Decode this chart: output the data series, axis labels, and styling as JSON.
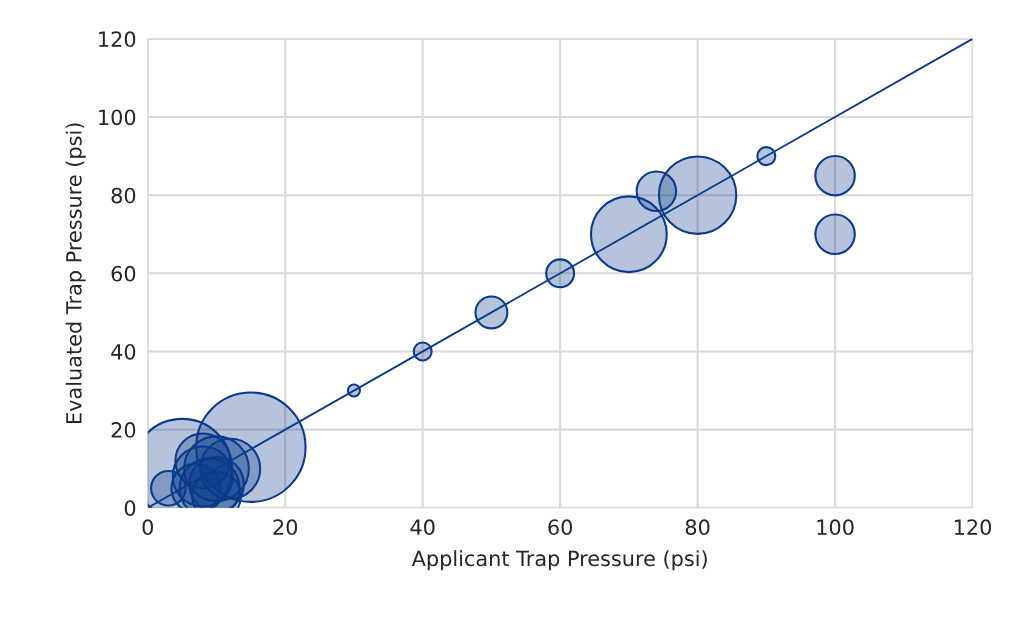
{
  "chart_data": {
    "type": "bubble",
    "xlabel": "Applicant Trap Pressure (psi)",
    "ylabel": "Evaluated Trap Pressure (psi)",
    "xlim": [
      0,
      120
    ],
    "xticks": [
      0,
      20,
      40,
      60,
      80,
      100,
      120
    ],
    "ylim": [
      0,
      120
    ],
    "yticks": [
      0,
      20,
      40,
      60,
      80,
      100,
      120
    ],
    "grid": true,
    "legend": false,
    "series": [
      {
        "color": "#0b3a8c",
        "x": [
          5,
          15,
          10,
          8,
          9,
          10,
          7,
          12,
          8,
          3,
          10,
          30,
          40,
          50,
          60,
          70,
          74,
          80,
          90,
          100,
          100
        ],
        "values": [
          10,
          15.5,
          10,
          8,
          5,
          6,
          5,
          10,
          12,
          5,
          3,
          30,
          40,
          50,
          60,
          70,
          81,
          80,
          90,
          85,
          70
        ],
        "sizes": [
          0.83,
          1,
          0.35,
          0.3,
          0.3,
          0.25,
          0.2,
          0.3,
          0.25,
          0.1,
          0.2,
          0.012,
          0.027,
          0.085,
          0.065,
          0.48,
          0.13,
          0.5,
          0.027,
          0.13,
          0.13
        ]
      },
      {
        "type": "line",
        "color": "#0b3a8c",
        "x": [
          0,
          120
        ],
        "values": [
          0,
          120
        ]
      }
    ]
  }
}
